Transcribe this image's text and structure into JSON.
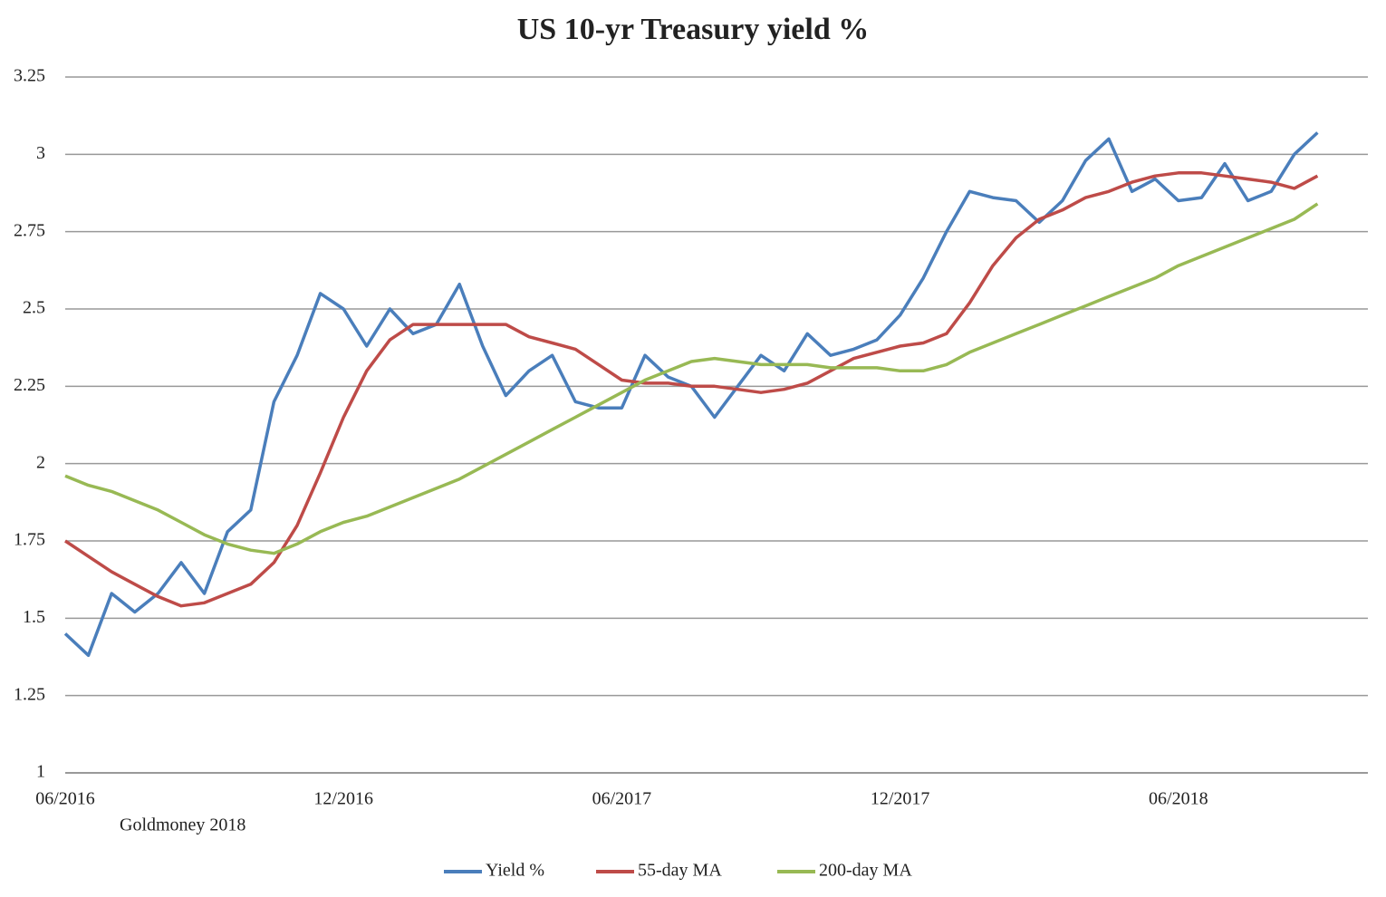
{
  "chart_data": {
    "type": "line",
    "title": "US 10-yr Treasury yield %",
    "source": "Goldmoney 2018",
    "categories": [
      "06/2016",
      null,
      null,
      null,
      null,
      null,
      null,
      null,
      null,
      null,
      null,
      null,
      "12/2016",
      null,
      null,
      null,
      null,
      null,
      null,
      null,
      null,
      null,
      null,
      null,
      "06/2017",
      null,
      null,
      null,
      null,
      null,
      null,
      null,
      null,
      null,
      null,
      null,
      "12/2017",
      null,
      null,
      null,
      null,
      null,
      null,
      null,
      null,
      null,
      null,
      null,
      "06/2018",
      null,
      null,
      null,
      null,
      null,
      null
    ],
    "series": [
      {
        "name": "Yield %",
        "color": "#4a7ebb",
        "values": [
          1.45,
          1.38,
          1.58,
          1.52,
          1.58,
          1.68,
          1.58,
          1.78,
          1.85,
          2.2,
          2.35,
          2.55,
          2.5,
          2.38,
          2.5,
          2.42,
          2.45,
          2.58,
          2.38,
          2.22,
          2.3,
          2.35,
          2.2,
          2.18,
          2.18,
          2.35,
          2.28,
          2.25,
          2.15,
          2.25,
          2.35,
          2.3,
          2.42,
          2.35,
          2.37,
          2.4,
          2.48,
          2.6,
          2.75,
          2.88,
          2.86,
          2.85,
          2.78,
          2.85,
          2.98,
          3.05,
          2.88,
          2.92,
          2.85,
          2.86,
          2.97,
          2.85,
          2.88,
          3.0,
          3.07
        ]
      },
      {
        "name": "55-day MA",
        "color": "#be4b48",
        "values": [
          1.75,
          1.7,
          1.65,
          1.61,
          1.57,
          1.54,
          1.55,
          1.58,
          1.61,
          1.68,
          1.8,
          1.97,
          2.15,
          2.3,
          2.4,
          2.45,
          2.45,
          2.45,
          2.45,
          2.45,
          2.41,
          2.39,
          2.37,
          2.32,
          2.27,
          2.26,
          2.26,
          2.25,
          2.25,
          2.24,
          2.23,
          2.24,
          2.26,
          2.3,
          2.34,
          2.36,
          2.38,
          2.39,
          2.42,
          2.52,
          2.64,
          2.73,
          2.79,
          2.82,
          2.86,
          2.88,
          2.91,
          2.93,
          2.94,
          2.94,
          2.93,
          2.92,
          2.91,
          2.89,
          2.93
        ]
      },
      {
        "name": "200-day MA",
        "color": "#98b954",
        "values": [
          1.96,
          1.93,
          1.91,
          1.88,
          1.85,
          1.81,
          1.77,
          1.74,
          1.72,
          1.71,
          1.74,
          1.78,
          1.81,
          1.83,
          1.86,
          1.89,
          1.92,
          1.95,
          1.99,
          2.03,
          2.07,
          2.11,
          2.15,
          2.19,
          2.23,
          2.27,
          2.3,
          2.33,
          2.34,
          2.33,
          2.32,
          2.32,
          2.32,
          2.31,
          2.31,
          2.31,
          2.3,
          2.3,
          2.32,
          2.36,
          2.39,
          2.42,
          2.45,
          2.48,
          2.51,
          2.54,
          2.57,
          2.6,
          2.64,
          2.67,
          2.7,
          2.73,
          2.76,
          2.79,
          2.84
        ]
      }
    ],
    "ylim": [
      1,
      3.25
    ],
    "yticks": [
      1,
      1.25,
      1.5,
      1.75,
      2,
      2.25,
      2.5,
      2.75,
      3,
      3.25
    ],
    "grid": true,
    "legend": "bottom"
  }
}
